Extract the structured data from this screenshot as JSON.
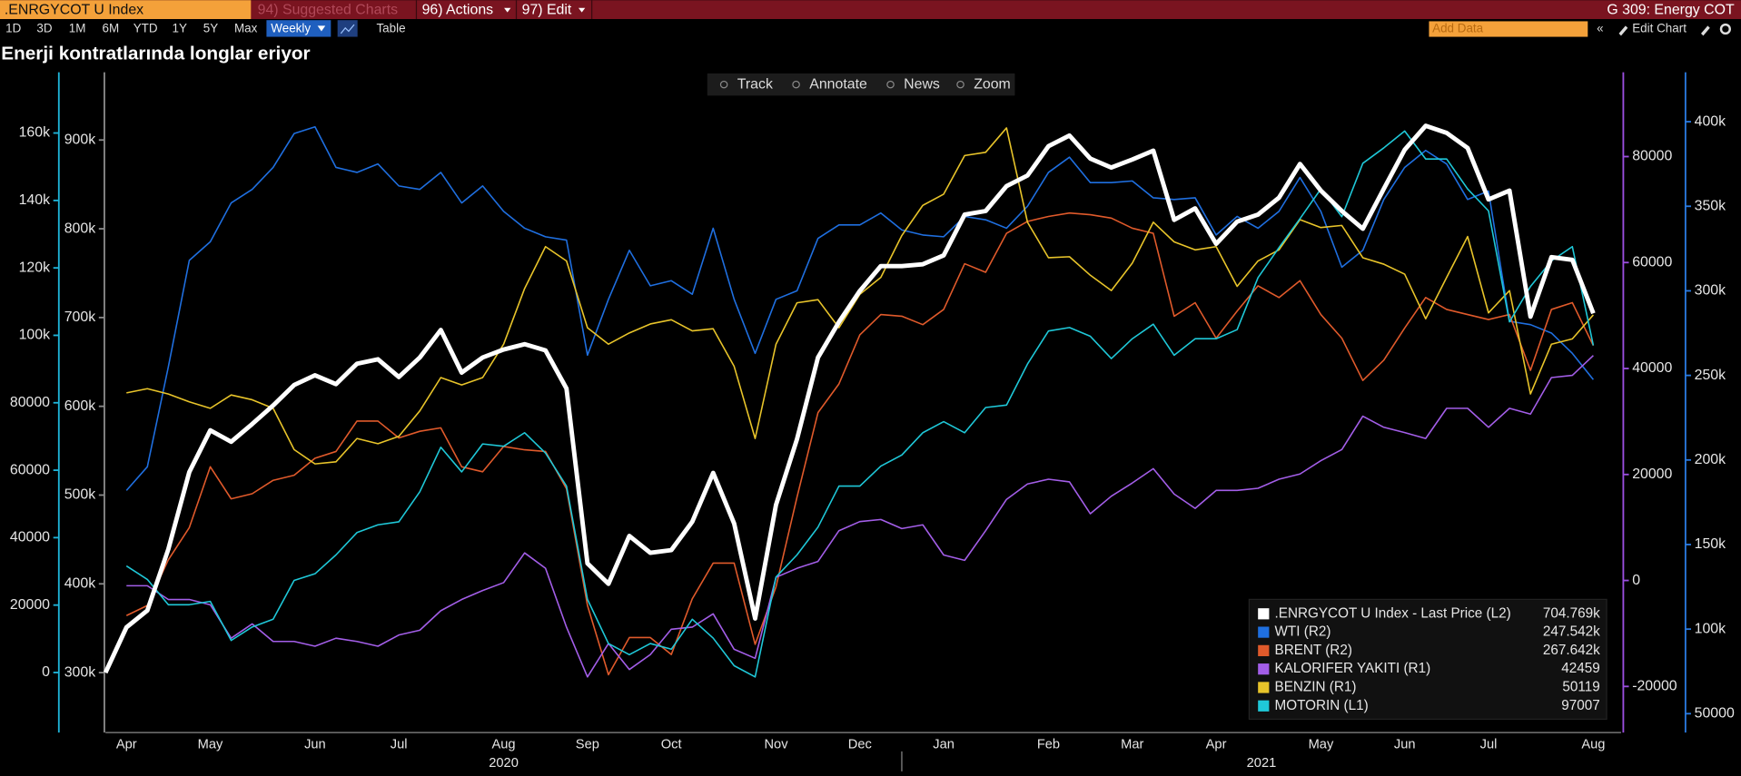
{
  "header": {
    "ticker": ".ENRGYCOT U Index",
    "menus": [
      "94) Suggested Charts",
      "96) Actions",
      "97) Edit"
    ],
    "function": "G 309: Energy COT"
  },
  "toolbar": {
    "periods": [
      "1D",
      "3D",
      "1M",
      "6M",
      "YTD",
      "1Y",
      "5Y",
      "Max"
    ],
    "frequency": "Weekly",
    "table": "Table",
    "add_data": "Add Data",
    "edit_chart": "Edit Chart"
  },
  "chart_tools": [
    "Track",
    "Annotate",
    "News",
    "Zoom"
  ],
  "chart_data": {
    "type": "line",
    "title": "Enerji kontratlarında longlar eriyor",
    "categories": [
      null,
      "Apr",
      null,
      null,
      null,
      "May",
      null,
      null,
      null,
      null,
      "Jun",
      null,
      null,
      null,
      "Jul",
      null,
      null,
      null,
      null,
      "Aug",
      null,
      null,
      null,
      "Sep",
      null,
      null,
      null,
      "Oct",
      null,
      null,
      null,
      null,
      "Nov",
      null,
      null,
      null,
      "Dec",
      null,
      null,
      null,
      "Jan",
      null,
      null,
      null,
      null,
      "Feb",
      null,
      null,
      null,
      "Mar",
      null,
      null,
      null,
      "Apr",
      null,
      null,
      null,
      null,
      "May",
      null,
      null,
      null,
      "Jun",
      null,
      null,
      null,
      "Jul",
      null,
      null,
      null,
      null,
      "Aug"
    ],
    "years": [
      "2020",
      "2021"
    ],
    "axes": {
      "L1": {
        "color": "#1fb4d8",
        "lim": [
          -17800,
          178000
        ],
        "ticks": [
          0,
          20000,
          40000,
          60000,
          80000,
          {
            "value": 100000,
            "label": "100k"
          },
          {
            "value": 120000,
            "label": "120k"
          },
          {
            "value": 140000,
            "label": "140k"
          },
          {
            "value": 160000,
            "label": "160k"
          }
        ]
      },
      "L2": {
        "color": "#8a8a8a",
        "lim": [
          232500,
          976250
        ],
        "ticks": [
          {
            "value": 300000,
            "label": "300k"
          },
          {
            "value": 400000,
            "label": "400k"
          },
          {
            "value": 500000,
            "label": "500k"
          },
          {
            "value": 600000,
            "label": "600k"
          },
          {
            "value": 700000,
            "label": "700k"
          },
          {
            "value": 800000,
            "label": "800k"
          },
          {
            "value": 900000,
            "label": "900k"
          }
        ]
      },
      "R1": {
        "color": "#9b4fe0",
        "lim": [
          -28700,
          95900
        ],
        "ticks": [
          -20000,
          0,
          20000,
          40000,
          60000,
          80000
        ]
      },
      "R2": {
        "color": "#2a7ae0",
        "lim": [
          38850,
          429200
        ],
        "ticks": [
          50000,
          {
            "value": 100000,
            "label": "100k"
          },
          {
            "value": 150000,
            "label": "150k"
          },
          {
            "value": 200000,
            "label": "200k"
          },
          {
            "value": 250000,
            "label": "250k"
          },
          {
            "value": 300000,
            "label": "300k"
          },
          {
            "value": 350000,
            "label": "350k"
          },
          {
            "value": 400000,
            "label": "400k"
          }
        ]
      }
    },
    "series": [
      {
        "name": ".ENRGYCOT U Index - Last Price (L2)",
        "axis": "L2",
        "color": "#ffffff",
        "legend_value": "704.769k",
        "values": [
          300000,
          351000,
          370000,
          439000,
          526000,
          573000,
          560000,
          580000,
          601000,
          624000,
          635000,
          625000,
          648000,
          653000,
          633000,
          655000,
          686000,
          638000,
          655000,
          664000,
          670000,
          663000,
          620000,
          423000,
          400000,
          454000,
          435000,
          438000,
          470000,
          525000,
          468000,
          361000,
          489000,
          563000,
          655000,
          695000,
          730000,
          758000,
          758000,
          760000,
          770000,
          816000,
          820000,
          848000,
          860000,
          893000,
          905000,
          879000,
          869000,
          878000,
          888000,
          810000,
          823000,
          783000,
          808000,
          816000,
          835000,
          873000,
          843000,
          820000,
          800000,
          845000,
          889000,
          916000,
          908000,
          891000,
          833000,
          843000,
          701000,
          768000,
          765000,
          704769
        ]
      },
      {
        "name": "WTI  (R2)",
        "axis": "R2",
        "color": "#1f6fe0",
        "legend_value": "247.542k",
        "values": [
          null,
          182000,
          196000,
          255000,
          318000,
          329000,
          352000,
          360000,
          373000,
          393000,
          397000,
          373000,
          370000,
          375000,
          362000,
          360000,
          370000,
          352000,
          362000,
          347000,
          337000,
          332000,
          330000,
          262000,
          295000,
          324000,
          303000,
          306000,
          298000,
          337000,
          295000,
          263000,
          295000,
          300000,
          331000,
          339000,
          339000,
          346000,
          336000,
          333000,
          332000,
          344000,
          342000,
          337000,
          350000,
          370000,
          379000,
          364000,
          364000,
          365000,
          355000,
          354000,
          355000,
          333000,
          344000,
          337000,
          347000,
          367000,
          347000,
          314000,
          324000,
          354000,
          373000,
          383000,
          375000,
          354000,
          359000,
          282000,
          280000,
          275000,
          263000,
          247542
        ]
      },
      {
        "name": "BRENT (R2)",
        "axis": "R2",
        "color": "#e05a2b",
        "legend_value": "267.642k",
        "values": [
          null,
          108000,
          114000,
          141000,
          160000,
          196000,
          177000,
          180000,
          188000,
          191000,
          201000,
          205000,
          223000,
          223000,
          213000,
          217000,
          219000,
          196000,
          193000,
          208000,
          206000,
          205000,
          183000,
          114000,
          73000,
          95000,
          95000,
          85000,
          118000,
          139000,
          139000,
          91000,
          125000,
          178000,
          228000,
          245000,
          274000,
          286000,
          285000,
          280000,
          289000,
          316000,
          311000,
          334000,
          341000,
          344000,
          346000,
          345000,
          343000,
          337000,
          334000,
          285000,
          293000,
          272000,
          288000,
          303000,
          296000,
          306000,
          286000,
          272000,
          247000,
          259000,
          278000,
          296000,
          289000,
          286000,
          283000,
          286000,
          253000,
          289000,
          293000,
          267642
        ]
      },
      {
        "name": "KALORIFER YAKITI (R1)",
        "axis": "R1",
        "color": "#a35ee8",
        "values": [
          null,
          -1000,
          -1000,
          -3600,
          -3600,
          -4600,
          -10900,
          -8200,
          -11500,
          -11500,
          -12400,
          -10900,
          -11500,
          -12400,
          -10300,
          -9400,
          -5700,
          -3600,
          -1900,
          -400,
          5200,
          2300,
          -8800,
          -18200,
          -11900,
          -16800,
          -14000,
          -9200,
          -8800,
          -6300,
          -13000,
          -14700,
          600,
          2300,
          3600,
          9400,
          11100,
          11500,
          9800,
          10500,
          4800,
          3800,
          9400,
          15300,
          18200,
          19100,
          18600,
          12600,
          15900,
          18400,
          21100,
          16300,
          13600,
          17000,
          17000,
          17400,
          19100,
          20100,
          22600,
          24700,
          31000,
          28900,
          27900,
          26800,
          32500,
          32500,
          28900,
          32500,
          31400,
          38300,
          38700,
          42459
        ]
      },
      {
        "name": "BENZIN (R1)",
        "axis": "R1",
        "color": "#e8c42a",
        "values": [
          null,
          35400,
          36200,
          35200,
          33700,
          32500,
          35000,
          34100,
          32500,
          24700,
          22000,
          22400,
          26800,
          25800,
          27200,
          32000,
          38300,
          36900,
          38300,
          44600,
          55100,
          63000,
          60300,
          47700,
          44600,
          46700,
          48400,
          49200,
          47100,
          47500,
          40400,
          26800,
          44600,
          52400,
          53000,
          47700,
          54000,
          57200,
          65100,
          70800,
          72900,
          80200,
          80800,
          85400,
          67600,
          60900,
          61100,
          57600,
          54700,
          59900,
          67600,
          63900,
          62400,
          63000,
          55500,
          60300,
          62400,
          68100,
          66600,
          67000,
          60900,
          59700,
          57800,
          49400,
          57200,
          64900,
          50500,
          54700,
          35200,
          44600,
          45600,
          50119
        ]
      },
      {
        "name": "MOTORIN (L1)",
        "axis": "L1",
        "color": "#1fc8d8",
        "values": [
          null,
          31600,
          27600,
          20100,
          20100,
          21100,
          9500,
          13500,
          15800,
          27300,
          29300,
          34900,
          41500,
          43800,
          44700,
          53600,
          66800,
          59500,
          67800,
          67100,
          71100,
          65100,
          55300,
          21700,
          8600,
          5300,
          8600,
          6900,
          15800,
          10200,
          2000,
          -1300,
          28300,
          34900,
          43100,
          55300,
          55300,
          61200,
          64500,
          71100,
          74400,
          71100,
          78600,
          79300,
          91500,
          101300,
          102300,
          99700,
          93100,
          99000,
          103300,
          94100,
          99000,
          99000,
          101700,
          117100,
          126000,
          134600,
          143400,
          135200,
          151000,
          155600,
          160600,
          152300,
          152300,
          143400,
          136900,
          104000,
          114500,
          122100,
          126300,
          97007
        ]
      }
    ]
  }
}
